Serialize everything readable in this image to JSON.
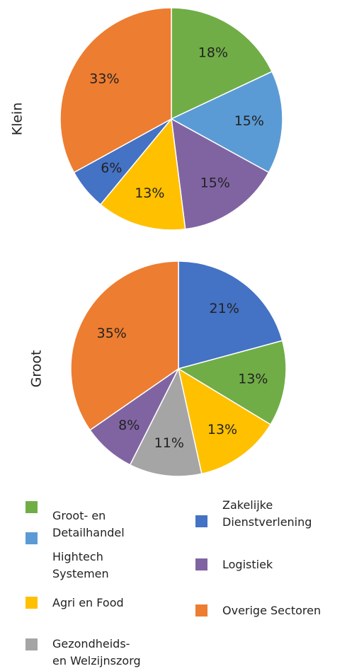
{
  "chart_data": [
    {
      "type": "pie",
      "title": "Klein",
      "categories": [
        "Groot- en Detailhandel",
        "Hightech Systemen",
        "Logistiek",
        "Agri en Food",
        "Zakelijke Dienstverlening",
        "Overige Sectoren"
      ],
      "values": [
        18,
        15,
        15,
        13,
        6,
        33
      ],
      "value_labels": [
        "18%",
        "15%",
        "15%",
        "13%",
        "6%",
        "33%"
      ],
      "colors": [
        "#70ad47",
        "#5b9bd5",
        "#8064a2",
        "#ffc000",
        "#4472c4",
        "#ed7d31"
      ]
    },
    {
      "type": "pie",
      "title": "Groot",
      "categories": [
        "Zakelijke Dienstverlening",
        "Groot- en Detailhandel",
        "Agri en Food",
        "Gezondheids- en Welzijnszorg",
        "Logistiek",
        "Overige Sectoren"
      ],
      "values": [
        21,
        13,
        13,
        11,
        8,
        35
      ],
      "value_labels": [
        "21%",
        "13%",
        "13%",
        "11%",
        "8%",
        "35%"
      ],
      "colors": [
        "#4472c4",
        "#70ad47",
        "#ffc000",
        "#a5a5a5",
        "#8064a2",
        "#ed7d31"
      ]
    }
  ],
  "legend": [
    {
      "name": "Groot- en Detailhandel",
      "color": "#70ad47"
    },
    {
      "name": "Zakelijke Dienstverlening",
      "color": "#4472c4"
    },
    {
      "name": "Hightech Systemen",
      "color": "#5b9bd5"
    },
    {
      "name": "Logistiek",
      "color": "#8064a2"
    },
    {
      "name": "Agri en Food",
      "color": "#ffc000"
    },
    {
      "name": "Overige Sectoren",
      "color": "#ed7d31"
    },
    {
      "name": "Gezondheids- en Welzijnszorg",
      "color": "#a5a5a5"
    }
  ]
}
